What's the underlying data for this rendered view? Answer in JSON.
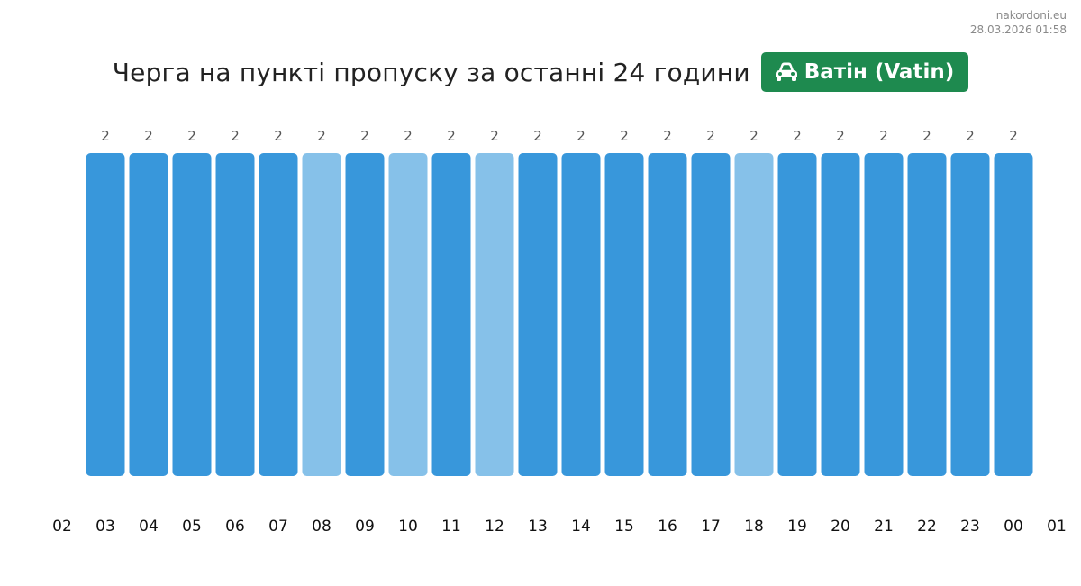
{
  "source": {
    "site": "nakordoni.eu",
    "timestamp": "28.03.2026 01:58"
  },
  "header": {
    "title": "Черга на пункті пропуску за останні 24 години",
    "crossing_name": "Ватін (Vatin)",
    "badge_icon": "car-icon",
    "badge_color": "#1e8a4f"
  },
  "colors": {
    "bar_primary": "#3897db",
    "bar_light": "#86c1e9",
    "value_label": "#555555",
    "tick_label": "#111111"
  },
  "chart_data": {
    "type": "bar",
    "title": "Черга на пункті пропуску за останні 24 години",
    "x_ticks": [
      "02",
      "03",
      "04",
      "05",
      "06",
      "07",
      "08",
      "09",
      "10",
      "11",
      "12",
      "13",
      "14",
      "15",
      "16",
      "17",
      "18",
      "19",
      "20",
      "21",
      "22",
      "23",
      "00",
      "01"
    ],
    "categories": [
      "03",
      "04",
      "05",
      "06",
      "07",
      "08",
      "09",
      "10",
      "11",
      "12",
      "13",
      "14",
      "15",
      "16",
      "17",
      "18",
      "19",
      "20",
      "21",
      "22",
      "23",
      "00"
    ],
    "values": [
      2,
      2,
      2,
      2,
      2,
      2,
      2,
      2,
      2,
      2,
      2,
      2,
      2,
      2,
      2,
      2,
      2,
      2,
      2,
      2,
      2,
      2
    ],
    "bar_tone": [
      "primary",
      "primary",
      "primary",
      "primary",
      "primary",
      "light",
      "primary",
      "light",
      "primary",
      "light",
      "primary",
      "primary",
      "primary",
      "primary",
      "primary",
      "light",
      "primary",
      "primary",
      "primary",
      "primary",
      "primary",
      "primary"
    ],
    "xlabel": "",
    "ylabel": "",
    "ylim": [
      0,
      2
    ],
    "grid": false,
    "legend": "none"
  }
}
